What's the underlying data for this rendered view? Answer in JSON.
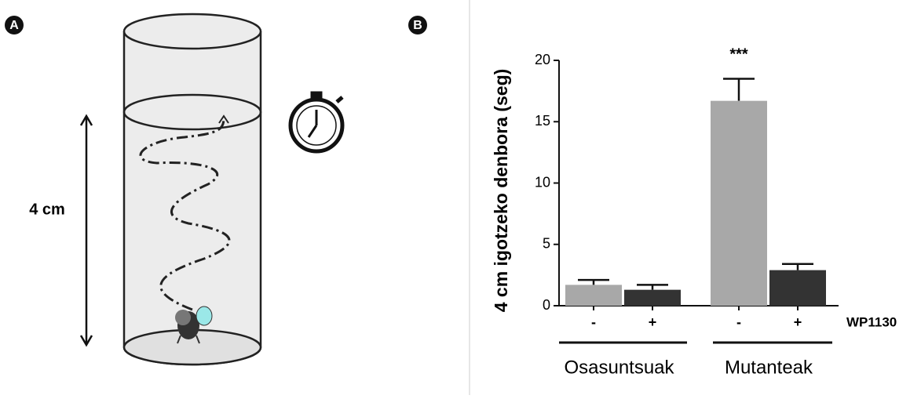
{
  "panels": [
    "A",
    "B"
  ],
  "diagram": {
    "height_label": "4 cm"
  },
  "chart_data": {
    "type": "bar",
    "y_label": "4 cm igotzeko denbora  (seg)",
    "categories": [
      "-",
      "+",
      "-",
      "+"
    ],
    "values": [
      1.7,
      1.3,
      16.7,
      2.9
    ],
    "errors": [
      0.4,
      0.4,
      1.8,
      0.5
    ],
    "colors": [
      "#a8a8a8",
      "#333333",
      "#a8a8a8",
      "#333333"
    ],
    "groups": [
      "Osasuntsuak",
      "Mutanteak"
    ],
    "treatment_label": "WP1130",
    "annotation": "***",
    "ylim": [
      0,
      20
    ],
    "yticks": [
      0,
      5,
      10,
      15,
      20
    ]
  }
}
